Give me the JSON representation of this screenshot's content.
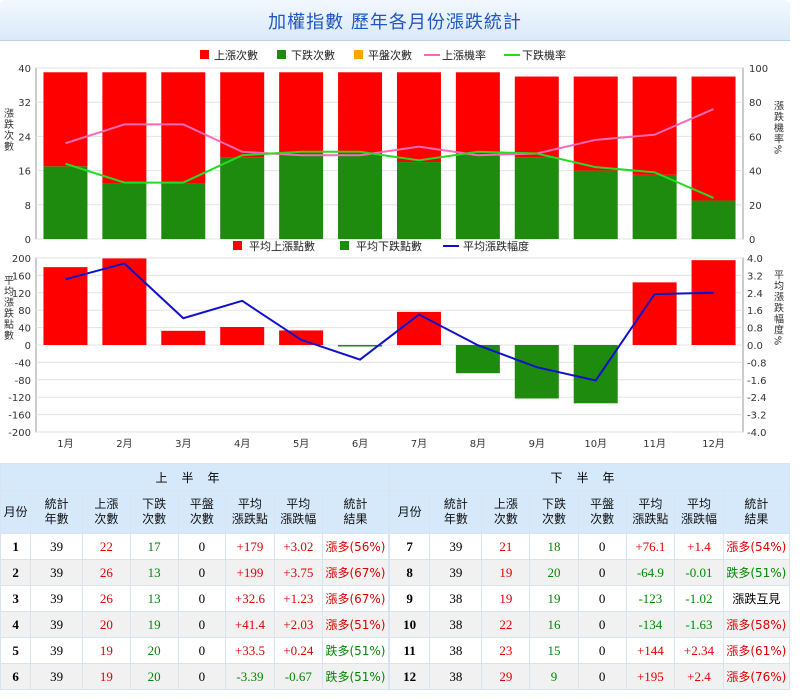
{
  "title": "加權指數 歷年各月份漲跌統計",
  "colors": {
    "up": "#ff0000",
    "down": "#1e8a0e",
    "flat": "#ffa500",
    "up_rate": "#ff69b4",
    "down_rate": "#22dd22",
    "avg_amp": "#1010cc"
  },
  "chart_data": [
    {
      "type": "bar",
      "stacked": true,
      "categories": [
        "1月",
        "2月",
        "3月",
        "4月",
        "5月",
        "6月",
        "7月",
        "8月",
        "9月",
        "10月",
        "11月",
        "12月"
      ],
      "series": [
        {
          "name": "上漲次數",
          "values": [
            22,
            26,
            26,
            20,
            19,
            19,
            21,
            19,
            19,
            22,
            23,
            29
          ]
        },
        {
          "name": "下跌次數",
          "values": [
            17,
            13,
            13,
            19,
            20,
            20,
            18,
            20,
            19,
            16,
            15,
            9
          ]
        },
        {
          "name": "平盤次數",
          "values": [
            0,
            0,
            0,
            0,
            0,
            0,
            0,
            0,
            0,
            0,
            0,
            0
          ]
        }
      ],
      "line_series": [
        {
          "name": "上漲機率",
          "values": [
            56,
            67,
            67,
            51,
            49,
            49,
            54,
            49,
            50,
            58,
            61,
            76
          ]
        },
        {
          "name": "下跌機率",
          "values": [
            44,
            33,
            33,
            49,
            51,
            51,
            46,
            51,
            50,
            42,
            39,
            24
          ]
        }
      ],
      "ylabel": "漲跌次數",
      "y2label": "漲跌機率%",
      "ylim": [
        0,
        40
      ],
      "y2lim": [
        0,
        100
      ],
      "yticks": [
        "0",
        "8",
        "16",
        "24",
        "32",
        "40"
      ],
      "y2ticks": [
        "0",
        "20",
        "40",
        "60",
        "80",
        "100"
      ]
    },
    {
      "type": "bar",
      "categories": [
        "1月",
        "2月",
        "3月",
        "4月",
        "5月",
        "6月",
        "7月",
        "8月",
        "9月",
        "10月",
        "11月",
        "12月"
      ],
      "series": [
        {
          "name": "平均上漲點數",
          "values": [
            179,
            199,
            32.6,
            41.4,
            33.5,
            0,
            76.1,
            0,
            0,
            0,
            144,
            195
          ]
        },
        {
          "name": "平均下跌點數",
          "values": [
            0,
            0,
            0,
            0,
            0,
            -3.39,
            0,
            -64.9,
            -123,
            -134,
            0,
            0
          ]
        }
      ],
      "line_series": [
        {
          "name": "平均漲跌幅度",
          "values": [
            3.02,
            3.75,
            1.23,
            2.03,
            0.24,
            -0.67,
            1.4,
            -0.01,
            -1.02,
            -1.63,
            2.34,
            2.4
          ]
        }
      ],
      "ylabel": "平均漲跌點數",
      "y2label": "平均漲跌幅度%",
      "ylim": [
        -200,
        200
      ],
      "y2lim": [
        -4,
        4
      ],
      "yticks": [
        "-200",
        "-160",
        "-120",
        "-80",
        "-40",
        "0",
        "40",
        "80",
        "120",
        "160",
        "200"
      ],
      "y2ticks": [
        "-4.0",
        "-3.2",
        "-2.4",
        "-1.6",
        "-0.8",
        "0.0",
        "0.8",
        "1.6",
        "2.4",
        "3.2",
        "4.0"
      ]
    }
  ],
  "table": {
    "first_half_label": "上半年",
    "second_half_label": "下半年",
    "headers": [
      "月份",
      "統計\n年數",
      "上漲\n次數",
      "下跌\n次數",
      "平盤\n次數",
      "平均\n漲跌點",
      "平均\n漲跌幅",
      "統計\n結果"
    ],
    "first_half": [
      {
        "month": "1",
        "years": "39",
        "up": "22",
        "down": "17",
        "flat": "0",
        "avg_pts": "+179",
        "avg_pct": "+3.02",
        "result": "漲多(56%)"
      },
      {
        "month": "2",
        "years": "39",
        "up": "26",
        "down": "13",
        "flat": "0",
        "avg_pts": "+199",
        "avg_pct": "+3.75",
        "result": "漲多(67%)"
      },
      {
        "month": "3",
        "years": "39",
        "up": "26",
        "down": "13",
        "flat": "0",
        "avg_pts": "+32.6",
        "avg_pct": "+1.23",
        "result": "漲多(67%)"
      },
      {
        "month": "4",
        "years": "39",
        "up": "20",
        "down": "19",
        "flat": "0",
        "avg_pts": "+41.4",
        "avg_pct": "+2.03",
        "result": "漲多(51%)"
      },
      {
        "month": "5",
        "years": "39",
        "up": "19",
        "down": "20",
        "flat": "0",
        "avg_pts": "+33.5",
        "avg_pct": "+0.24",
        "result": "跌多(51%)"
      },
      {
        "month": "6",
        "years": "39",
        "up": "19",
        "down": "20",
        "flat": "0",
        "avg_pts": "-3.39",
        "avg_pct": "-0.67",
        "result": "跌多(51%)"
      }
    ],
    "second_half": [
      {
        "month": "7",
        "years": "39",
        "up": "21",
        "down": "18",
        "flat": "0",
        "avg_pts": "+76.1",
        "avg_pct": "+1.4",
        "result": "漲多(54%)"
      },
      {
        "month": "8",
        "years": "39",
        "up": "19",
        "down": "20",
        "flat": "0",
        "avg_pts": "-64.9",
        "avg_pct": "-0.01",
        "result": "跌多(51%)"
      },
      {
        "month": "9",
        "years": "38",
        "up": "19",
        "down": "19",
        "flat": "0",
        "avg_pts": "-123",
        "avg_pct": "-1.02",
        "result": "漲跌互見"
      },
      {
        "month": "10",
        "years": "38",
        "up": "22",
        "down": "16",
        "flat": "0",
        "avg_pts": "-134",
        "avg_pct": "-1.63",
        "result": "漲多(58%)"
      },
      {
        "month": "11",
        "years": "38",
        "up": "23",
        "down": "15",
        "flat": "0",
        "avg_pts": "+144",
        "avg_pct": "+2.34",
        "result": "漲多(61%)"
      },
      {
        "month": "12",
        "years": "38",
        "up": "29",
        "down": "9",
        "flat": "0",
        "avg_pts": "+195",
        "avg_pct": "+2.4",
        "result": "漲多(76%)"
      }
    ]
  }
}
